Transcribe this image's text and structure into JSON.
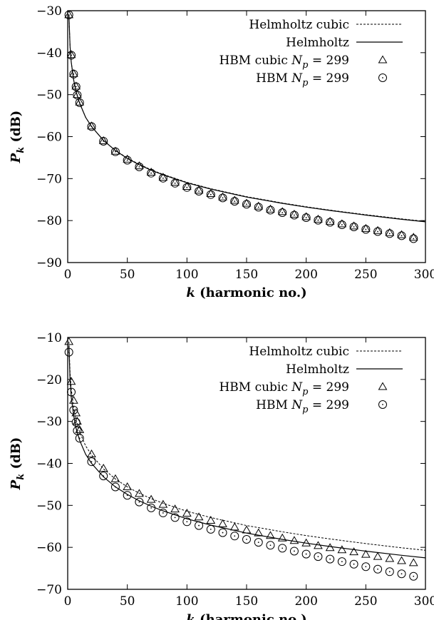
{
  "chart_data": [
    {
      "type": "line",
      "xlabel_var": "k",
      "xlabel_rest": "(harmonic no.)",
      "ylabel_var": "P",
      "ylabel_sub": "k",
      "ylabel_rest": "(dB)",
      "xlim": [
        0,
        300
      ],
      "ylim": [
        -90,
        -30
      ],
      "xticks": [
        0,
        50,
        100,
        150,
        200,
        250,
        300
      ],
      "yticks": [
        -90,
        -80,
        -70,
        -60,
        -50,
        -40,
        -30
      ],
      "legend_position": "top-right",
      "legend": {
        "helm_cubic": "Helmholtz cubic",
        "helm": "Helmholtz",
        "hbm_cubic_prefix": "HBM cubic",
        "hbm_prefix": "HBM",
        "np_var": "N",
        "np_sub": "p",
        "np_value": " = 299"
      },
      "series": [
        {
          "key": "helm_cubic",
          "style": "dashed",
          "x": [
            1,
            2,
            3,
            5,
            7,
            10,
            15,
            20,
            30,
            40,
            50,
            60,
            70,
            80,
            100,
            120,
            150,
            180,
            200,
            220,
            250,
            280,
            300
          ],
          "y": [
            -31,
            -38.5,
            -42.3,
            -46.5,
            -49.3,
            -52,
            -55.4,
            -57.6,
            -60.9,
            -63.3,
            -65.1,
            -66.6,
            -67.9,
            -69,
            -70.9,
            -72.4,
            -74.3,
            -75.8,
            -76.7,
            -77.5,
            -78.6,
            -79.6,
            -80.2
          ]
        },
        {
          "key": "helm",
          "style": "solid",
          "x": [
            1,
            2,
            3,
            5,
            7,
            10,
            15,
            20,
            30,
            40,
            50,
            60,
            70,
            80,
            100,
            120,
            150,
            180,
            200,
            220,
            250,
            280,
            300
          ],
          "y": [
            -31,
            -38.5,
            -42.3,
            -46.5,
            -49.3,
            -52,
            -55.4,
            -57.6,
            -60.9,
            -63.3,
            -65.2,
            -66.7,
            -68,
            -69.1,
            -71,
            -72.5,
            -74.4,
            -75.9,
            -76.8,
            -77.6,
            -78.7,
            -79.7,
            -80.3
          ]
        },
        {
          "key": "hbm_cubic",
          "style": "triangle",
          "x": [
            1,
            3,
            5,
            7,
            8,
            10,
            20,
            30,
            40,
            50,
            60,
            70,
            80,
            90,
            100,
            110,
            120,
            130,
            140,
            150,
            160,
            170,
            180,
            190,
            200,
            210,
            220,
            230,
            240,
            250,
            260,
            270,
            280,
            290
          ],
          "y": [
            -31,
            -40.5,
            -45,
            -48,
            -50,
            -51.8,
            -57.5,
            -61,
            -63.5,
            -65.4,
            -67,
            -68.5,
            -69.7,
            -70.9,
            -71.9,
            -72.8,
            -73.6,
            -74.4,
            -75.2,
            -75.9,
            -76.6,
            -77.3,
            -77.9,
            -78.5,
            -79.1,
            -79.7,
            -80.2,
            -80.8,
            -81.3,
            -81.9,
            -82.4,
            -82.9,
            -83.4,
            -84
          ]
        },
        {
          "key": "hbm",
          "style": "circle",
          "x": [
            1,
            3,
            5,
            7,
            8,
            10,
            20,
            30,
            40,
            50,
            60,
            70,
            80,
            90,
            100,
            110,
            120,
            130,
            140,
            150,
            160,
            170,
            180,
            190,
            200,
            210,
            220,
            230,
            240,
            250,
            260,
            270,
            280,
            290
          ],
          "y": [
            -31,
            -40.6,
            -45.1,
            -48.1,
            -50.1,
            -51.9,
            -57.6,
            -61.1,
            -63.6,
            -65.6,
            -67.2,
            -68.7,
            -69.9,
            -71.1,
            -72.1,
            -73,
            -73.8,
            -74.6,
            -75.4,
            -76.1,
            -76.8,
            -77.5,
            -78.1,
            -78.7,
            -79.3,
            -79.9,
            -80.4,
            -81,
            -81.5,
            -82.1,
            -82.6,
            -83.1,
            -83.6,
            -84.3
          ]
        }
      ]
    },
    {
      "type": "line",
      "xlabel_var": "k",
      "xlabel_rest": "(harmonic no.)",
      "ylabel_var": "P",
      "ylabel_sub": "k",
      "ylabel_rest": "(dB)",
      "xlim": [
        0,
        300
      ],
      "ylim": [
        -70,
        -10
      ],
      "xticks": [
        0,
        50,
        100,
        150,
        200,
        250,
        300
      ],
      "yticks": [
        -70,
        -60,
        -50,
        -40,
        -30,
        -20,
        -10
      ],
      "legend_position": "top-right",
      "legend": {
        "helm_cubic": "Helmholtz cubic",
        "helm": "Helmholtz",
        "hbm_cubic_prefix": "HBM cubic",
        "hbm_prefix": "HBM",
        "np_var": "N",
        "np_sub": "p",
        "np_value": " = 299"
      },
      "series": [
        {
          "key": "helm_cubic",
          "style": "dashed",
          "x": [
            1,
            2,
            3,
            5,
            7,
            10,
            15,
            20,
            30,
            40,
            50,
            60,
            70,
            80,
            100,
            120,
            150,
            180,
            200,
            220,
            250,
            280,
            300
          ],
          "y": [
            -11,
            -18.5,
            -22.3,
            -26.6,
            -29.6,
            -32.5,
            -35.8,
            -38,
            -41.3,
            -43.7,
            -45.6,
            -47.1,
            -48.4,
            -49.5,
            -51.4,
            -52.9,
            -54.8,
            -56.3,
            -57.2,
            -58,
            -59.1,
            -60.1,
            -60.7
          ]
        },
        {
          "key": "helm",
          "style": "solid",
          "x": [
            1,
            2,
            3,
            5,
            7,
            10,
            15,
            20,
            30,
            40,
            50,
            60,
            70,
            80,
            100,
            120,
            150,
            180,
            200,
            220,
            250,
            280,
            300
          ],
          "y": [
            -12,
            -20,
            -24.3,
            -28.6,
            -31.6,
            -34.5,
            -37.8,
            -40,
            -43.2,
            -45.6,
            -47.4,
            -48.9,
            -50.2,
            -51.3,
            -53.2,
            -54.7,
            -56.6,
            -58.1,
            -59,
            -59.8,
            -60.9,
            -61.9,
            -62.5
          ]
        },
        {
          "key": "hbm_cubic",
          "style": "triangle",
          "x": [
            1,
            3,
            5,
            7,
            8,
            10,
            20,
            30,
            40,
            50,
            60,
            70,
            80,
            90,
            100,
            110,
            120,
            130,
            140,
            150,
            160,
            170,
            180,
            190,
            200,
            210,
            220,
            230,
            240,
            250,
            260,
            270,
            280,
            290
          ],
          "y": [
            -11,
            -20.5,
            -25,
            -28,
            -30,
            -32,
            -37.8,
            -41.2,
            -43.7,
            -45.6,
            -47.2,
            -48.6,
            -49.8,
            -50.9,
            -51.9,
            -52.8,
            -53.6,
            -54.4,
            -55.2,
            -55.9,
            -56.6,
            -57.2,
            -57.8,
            -58.4,
            -59,
            -59.6,
            -60.1,
            -60.6,
            -61.1,
            -61.7,
            -62.2,
            -62.7,
            -63.2,
            -63.7
          ]
        },
        {
          "key": "hbm",
          "style": "circle",
          "x": [
            1,
            3,
            5,
            7,
            8,
            10,
            20,
            30,
            40,
            50,
            60,
            70,
            80,
            90,
            100,
            110,
            120,
            130,
            140,
            150,
            160,
            170,
            180,
            190,
            200,
            210,
            220,
            230,
            240,
            250,
            260,
            270,
            280,
            290
          ],
          "y": [
            -13.5,
            -23,
            -27.3,
            -30.2,
            -32.2,
            -34,
            -39.6,
            -43,
            -45.6,
            -47.6,
            -49.2,
            -50.6,
            -51.8,
            -52.9,
            -53.9,
            -54.8,
            -55.7,
            -56.5,
            -57.3,
            -58.1,
            -58.8,
            -59.5,
            -60.2,
            -60.9,
            -61.6,
            -62.2,
            -62.8,
            -63.4,
            -64,
            -64.6,
            -65.2,
            -65.8,
            -66.3,
            -66.9
          ]
        }
      ]
    }
  ]
}
